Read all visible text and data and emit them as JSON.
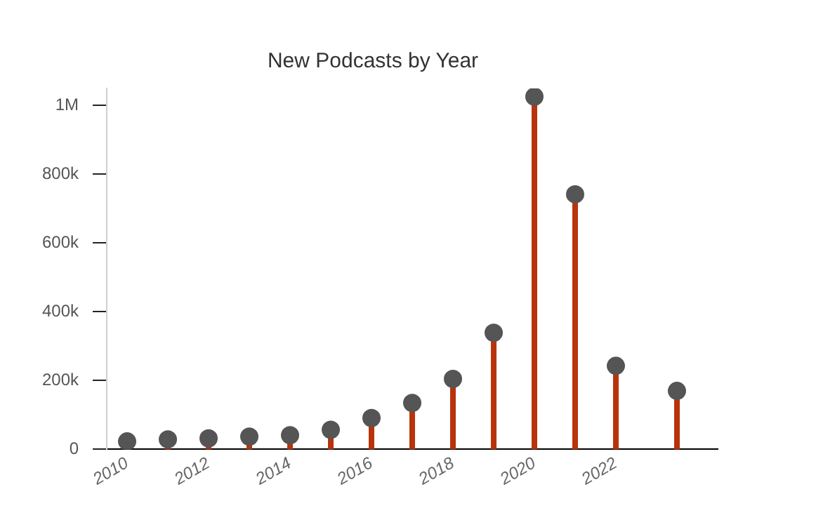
{
  "chart_data": {
    "type": "lollipop",
    "title": "New Podcasts by Year",
    "x": [
      2010,
      2011,
      2012,
      2013,
      2014,
      2015,
      2016,
      2017,
      2018,
      2019,
      2020,
      2021,
      2022,
      2023.5
    ],
    "series": [
      {
        "color": "#555555",
        "values": [
          23000,
          29000,
          32000,
          37000,
          41000,
          57000,
          91000,
          135000,
          205000,
          339000,
          1026000,
          742000,
          243000,
          170000
        ]
      }
    ],
    "xlim": [
      2009.5,
      2024.5
    ],
    "xticks": [
      2010,
      2012,
      2014,
      2016,
      2018,
      2020,
      2022
    ],
    "yticks": [
      0,
      {
        "value": 200000,
        "label": "200k"
      },
      {
        "value": 400000,
        "label": "400k"
      },
      {
        "value": 600000,
        "label": "600k"
      },
      {
        "value": 800000,
        "label": "800k"
      },
      {
        "value": 1000000,
        "label": "1M"
      }
    ],
    "ylim": [
      0,
      1050000
    ],
    "grid": false,
    "legend": false,
    "marker": "circle"
  }
}
